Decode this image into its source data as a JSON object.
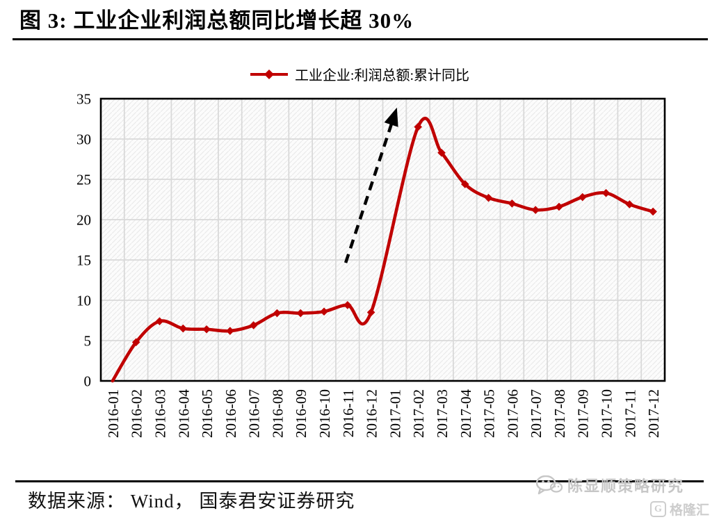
{
  "figure": {
    "title": "图 3:  工业企业利润总额同比增长超 30%",
    "source_note": "数据来源： Wind， 国泰君安证券研究"
  },
  "watermarks": {
    "wechat_label": "陈显顺策略研究",
    "gelonghui_icon_letter": "G",
    "gelonghui_label": "格隆汇"
  },
  "chart_data": {
    "type": "line",
    "legend": [
      "工业企业:利润总额:累计同比"
    ],
    "legend_position": "top-center",
    "categories": [
      "2016-01",
      "2016-02",
      "2016-03",
      "2016-04",
      "2016-05",
      "2016-06",
      "2016-07",
      "2016-08",
      "2016-09",
      "2016-10",
      "2016-11",
      "2016-12",
      "2017-01",
      "2017-02",
      "2017-03",
      "2017-04",
      "2017-05",
      "2017-06",
      "2017-07",
      "2017-08",
      "2017-09",
      "2017-10",
      "2017-11",
      "2017-12"
    ],
    "series": [
      {
        "name": "工业企业:利润总额:累计同比",
        "color": "#C00000",
        "marker": "diamond",
        "smooth": true,
        "values": [
          0,
          4.8,
          7.4,
          6.5,
          6.4,
          6.2,
          6.9,
          8.4,
          8.4,
          8.6,
          9.4,
          8.5,
          null,
          31.5,
          28.3,
          24.4,
          22.7,
          22.0,
          21.2,
          21.6,
          22.8,
          23.3,
          21.9,
          21.0
        ]
      }
    ],
    "ylim": [
      0,
      35
    ],
    "yticks": [
      0,
      5,
      10,
      15,
      20,
      25,
      30,
      35
    ],
    "xlabel": "",
    "ylabel": "",
    "grid": {
      "horizontal": true,
      "vertical": true,
      "color": "#d9d9d9",
      "hatched_background": true
    },
    "first_point_marker_hidden": true,
    "annotation_arrow": {
      "style": "dashed",
      "color": "#000000",
      "from": {
        "x_index": 9.92,
        "value": 14.65
      },
      "to": {
        "x_index": 12.1,
        "value": 33.9
      }
    }
  }
}
